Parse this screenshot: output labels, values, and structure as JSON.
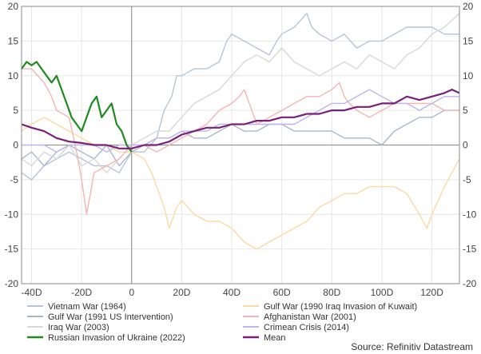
{
  "chart_data": {
    "type": "line",
    "title": "",
    "xlabel": "",
    "ylabel": "",
    "xlim": [
      -44,
      131
    ],
    "ylim": [
      -20,
      20
    ],
    "x_ticks": [
      -40,
      -20,
      0,
      20,
      40,
      60,
      80,
      100,
      120
    ],
    "x_tick_labels": [
      "-40D",
      "-20D",
      "0",
      "20D",
      "40D",
      "60D",
      "80D",
      "100D",
      "120D"
    ],
    "y_ticks": [
      -20,
      -15,
      -10,
      -5,
      0,
      5,
      10,
      15,
      20
    ],
    "y_tick_labels": [
      "-20",
      "-15",
      "-10",
      "-5",
      "0",
      "5",
      "10",
      "15",
      "20"
    ],
    "grid": true,
    "legend_position": "bottom",
    "source": "Source: Refinitiv Datastream",
    "series": [
      {
        "name": "Vietnam War (1964)",
        "color": "#b8c4d6",
        "points": [
          [
            -44,
            -4
          ],
          [
            -40,
            -5
          ],
          [
            -35,
            -3
          ],
          [
            -30,
            -2
          ],
          [
            -25,
            -1
          ],
          [
            -20,
            -2
          ],
          [
            -15,
            -3
          ],
          [
            -10,
            -3
          ],
          [
            -5,
            -4
          ],
          [
            0,
            -1
          ],
          [
            5,
            -1
          ],
          [
            10,
            1
          ],
          [
            13,
            5
          ],
          [
            16,
            7
          ],
          [
            18,
            10
          ],
          [
            20,
            10
          ],
          [
            25,
            11
          ],
          [
            30,
            11
          ],
          [
            35,
            12
          ],
          [
            38,
            15
          ],
          [
            40,
            16
          ],
          [
            45,
            15
          ],
          [
            50,
            14
          ],
          [
            55,
            13
          ],
          [
            58,
            15
          ],
          [
            60,
            16
          ],
          [
            65,
            17
          ],
          [
            70,
            19
          ],
          [
            72,
            17
          ],
          [
            75,
            16
          ],
          [
            80,
            15
          ],
          [
            85,
            16
          ],
          [
            90,
            14
          ],
          [
            95,
            15
          ],
          [
            100,
            15
          ],
          [
            105,
            16
          ],
          [
            110,
            17
          ],
          [
            115,
            17
          ],
          [
            120,
            17
          ],
          [
            125,
            16
          ],
          [
            131,
            16
          ]
        ]
      },
      {
        "name": "Gulf War (1991 US Intervention)",
        "color": "#a8b8cc",
        "points": [
          [
            -44,
            -2
          ],
          [
            -40,
            -1
          ],
          [
            -35,
            -3
          ],
          [
            -30,
            -1
          ],
          [
            -25,
            0
          ],
          [
            -20,
            -1
          ],
          [
            -15,
            -2
          ],
          [
            -10,
            0
          ],
          [
            -5,
            -3
          ],
          [
            0,
            -1
          ],
          [
            5,
            0
          ],
          [
            10,
            1
          ],
          [
            15,
            1
          ],
          [
            20,
            2
          ],
          [
            25,
            1
          ],
          [
            30,
            1
          ],
          [
            35,
            2
          ],
          [
            40,
            3
          ],
          [
            45,
            2
          ],
          [
            50,
            2
          ],
          [
            55,
            3
          ],
          [
            60,
            3
          ],
          [
            65,
            2
          ],
          [
            70,
            2
          ],
          [
            75,
            2
          ],
          [
            80,
            2
          ],
          [
            85,
            1
          ],
          [
            90,
            1
          ],
          [
            95,
            1
          ],
          [
            100,
            0
          ],
          [
            105,
            2
          ],
          [
            110,
            3
          ],
          [
            115,
            4
          ],
          [
            120,
            4
          ],
          [
            125,
            5
          ],
          [
            131,
            5
          ]
        ]
      },
      {
        "name": "Iraq War (2003)",
        "color": "#d8d8d8",
        "points": [
          [
            -44,
            -2
          ],
          [
            -40,
            -3
          ],
          [
            -35,
            -1
          ],
          [
            -30,
            -2
          ],
          [
            -25,
            0
          ],
          [
            -20,
            -3
          ],
          [
            -15,
            -2
          ],
          [
            -10,
            -4
          ],
          [
            -5,
            -2
          ],
          [
            0,
            0
          ],
          [
            5,
            1
          ],
          [
            10,
            2
          ],
          [
            15,
            2
          ],
          [
            20,
            4
          ],
          [
            25,
            6
          ],
          [
            30,
            7
          ],
          [
            35,
            8
          ],
          [
            40,
            10
          ],
          [
            45,
            12
          ],
          [
            50,
            13
          ],
          [
            55,
            12
          ],
          [
            60,
            14
          ],
          [
            65,
            12
          ],
          [
            70,
            11
          ],
          [
            75,
            10
          ],
          [
            80,
            11
          ],
          [
            85,
            12
          ],
          [
            90,
            11
          ],
          [
            95,
            13
          ],
          [
            100,
            12
          ],
          [
            105,
            11
          ],
          [
            110,
            13
          ],
          [
            115,
            14
          ],
          [
            120,
            16
          ],
          [
            125,
            17
          ],
          [
            131,
            19
          ]
        ]
      },
      {
        "name": "Gulf War (1990 Iraq Invasion of Kuwait)",
        "color": "#fbd9a4",
        "points": [
          [
            -44,
            2
          ],
          [
            -40,
            3
          ],
          [
            -35,
            4
          ],
          [
            -30,
            3
          ],
          [
            -25,
            2
          ],
          [
            -20,
            1
          ],
          [
            -15,
            0
          ],
          [
            -10,
            0
          ],
          [
            -5,
            -1
          ],
          [
            0,
            -1
          ],
          [
            5,
            -2
          ],
          [
            8,
            -4
          ],
          [
            10,
            -6
          ],
          [
            13,
            -9
          ],
          [
            15,
            -12
          ],
          [
            18,
            -9
          ],
          [
            20,
            -8
          ],
          [
            25,
            -10
          ],
          [
            30,
            -11
          ],
          [
            35,
            -11
          ],
          [
            40,
            -12
          ],
          [
            45,
            -14
          ],
          [
            50,
            -15
          ],
          [
            55,
            -14
          ],
          [
            60,
            -13
          ],
          [
            65,
            -12
          ],
          [
            70,
            -11
          ],
          [
            75,
            -9
          ],
          [
            80,
            -8
          ],
          [
            85,
            -7
          ],
          [
            90,
            -7
          ],
          [
            95,
            -6
          ],
          [
            100,
            -6
          ],
          [
            105,
            -6
          ],
          [
            110,
            -7
          ],
          [
            115,
            -10
          ],
          [
            118,
            -12
          ],
          [
            120,
            -10
          ],
          [
            125,
            -6
          ],
          [
            131,
            -2
          ]
        ]
      },
      {
        "name": "Afghanistan War (2001)",
        "color": "#f3b5b5",
        "points": [
          [
            -44,
            11
          ],
          [
            -40,
            11
          ],
          [
            -35,
            9
          ],
          [
            -32,
            7
          ],
          [
            -30,
            5
          ],
          [
            -25,
            4
          ],
          [
            -22,
            -1
          ],
          [
            -20,
            -5
          ],
          [
            -18,
            -10
          ],
          [
            -15,
            -4
          ],
          [
            -10,
            -3
          ],
          [
            -5,
            -2
          ],
          [
            0,
            0
          ],
          [
            5,
            0
          ],
          [
            10,
            -1
          ],
          [
            15,
            0
          ],
          [
            20,
            1
          ],
          [
            25,
            2
          ],
          [
            30,
            3
          ],
          [
            35,
            5
          ],
          [
            40,
            6
          ],
          [
            43,
            7
          ],
          [
            45,
            8
          ],
          [
            47,
            6
          ],
          [
            50,
            3
          ],
          [
            55,
            4
          ],
          [
            60,
            5
          ],
          [
            65,
            6
          ],
          [
            70,
            7
          ],
          [
            75,
            7
          ],
          [
            80,
            8
          ],
          [
            83,
            9
          ],
          [
            85,
            7
          ],
          [
            87,
            6
          ],
          [
            90,
            5
          ],
          [
            95,
            4
          ],
          [
            100,
            5
          ],
          [
            105,
            6
          ],
          [
            110,
            6
          ],
          [
            115,
            6
          ],
          [
            120,
            6
          ],
          [
            125,
            5
          ],
          [
            131,
            5
          ]
        ]
      },
      {
        "name": "Crimean Crisis (2014)",
        "color": "#bcb6ee",
        "points": [
          [
            -44,
            0
          ],
          [
            -40,
            0
          ],
          [
            -35,
            0
          ],
          [
            -30,
            -1
          ],
          [
            -25,
            0
          ],
          [
            -20,
            0
          ],
          [
            -15,
            0
          ],
          [
            -10,
            -1
          ],
          [
            -5,
            0
          ],
          [
            0,
            0
          ],
          [
            5,
            0
          ],
          [
            10,
            1
          ],
          [
            15,
            1
          ],
          [
            20,
            2
          ],
          [
            25,
            2
          ],
          [
            30,
            2
          ],
          [
            35,
            3
          ],
          [
            40,
            3
          ],
          [
            45,
            3
          ],
          [
            50,
            3
          ],
          [
            55,
            3
          ],
          [
            60,
            3
          ],
          [
            65,
            3
          ],
          [
            70,
            4
          ],
          [
            75,
            5
          ],
          [
            80,
            6
          ],
          [
            85,
            6
          ],
          [
            90,
            7
          ],
          [
            95,
            8
          ],
          [
            100,
            7
          ],
          [
            105,
            6
          ],
          [
            110,
            6
          ],
          [
            115,
            5
          ],
          [
            120,
            6
          ],
          [
            125,
            7
          ],
          [
            131,
            7
          ]
        ]
      },
      {
        "name": "Russian Invasion of Ukraine (2022)",
        "color": "#1f8a1f",
        "points": [
          [
            -44,
            11
          ],
          [
            -42,
            12
          ],
          [
            -40,
            11.5
          ],
          [
            -38,
            12
          ],
          [
            -36,
            11
          ],
          [
            -34,
            10
          ],
          [
            -32,
            9
          ],
          [
            -30,
            10
          ],
          [
            -28,
            8
          ],
          [
            -26,
            6
          ],
          [
            -24,
            4
          ],
          [
            -22,
            3
          ],
          [
            -20,
            2
          ],
          [
            -18,
            4
          ],
          [
            -16,
            6
          ],
          [
            -14,
            7
          ],
          [
            -12,
            4
          ],
          [
            -10,
            5
          ],
          [
            -8,
            6
          ],
          [
            -6,
            3
          ],
          [
            -4,
            2
          ],
          [
            -2,
            0
          ],
          [
            0,
            -1
          ]
        ]
      },
      {
        "name": "Mean",
        "color": "#7a1f7a",
        "points": [
          [
            -44,
            3
          ],
          [
            -40,
            2.5
          ],
          [
            -35,
            2
          ],
          [
            -30,
            1
          ],
          [
            -25,
            0.5
          ],
          [
            -20,
            0.3
          ],
          [
            -15,
            0
          ],
          [
            -10,
            0
          ],
          [
            -5,
            -0.5
          ],
          [
            0,
            -0.5
          ],
          [
            5,
            0
          ],
          [
            10,
            0
          ],
          [
            15,
            0.5
          ],
          [
            20,
            1.5
          ],
          [
            25,
            2
          ],
          [
            30,
            2.5
          ],
          [
            35,
            2.5
          ],
          [
            40,
            3
          ],
          [
            45,
            3
          ],
          [
            50,
            3.5
          ],
          [
            55,
            3.5
          ],
          [
            60,
            4
          ],
          [
            65,
            4
          ],
          [
            70,
            4.5
          ],
          [
            75,
            4.5
          ],
          [
            80,
            5
          ],
          [
            85,
            5
          ],
          [
            90,
            5.5
          ],
          [
            95,
            5.5
          ],
          [
            100,
            6
          ],
          [
            105,
            6
          ],
          [
            110,
            7
          ],
          [
            115,
            6.5
          ],
          [
            120,
            7
          ],
          [
            125,
            7.5
          ],
          [
            128,
            8
          ],
          [
            131,
            7.5
          ]
        ]
      }
    ]
  }
}
